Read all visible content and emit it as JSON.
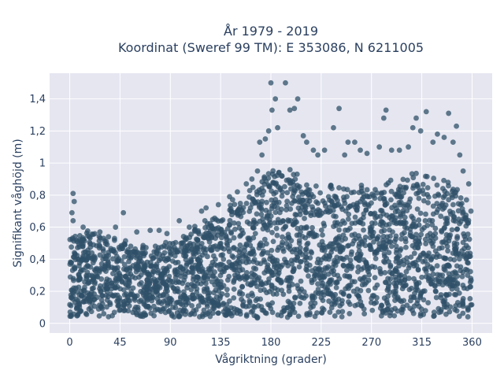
{
  "chart_data": {
    "type": "scatter",
    "title": "År 1979 - 2019",
    "subtitle": "Koordinat (Sweref 99 TM): E 353086, N 6211005",
    "xlabel": "Vågriktning (grader)",
    "ylabel": "Signifikant våghöjd (m)",
    "xlim": [
      -18,
      378
    ],
    "ylim": [
      -0.06,
      1.56
    ],
    "xticks": [
      0,
      45,
      90,
      135,
      180,
      225,
      270,
      315,
      360
    ],
    "xtick_labels": [
      "0",
      "45",
      "90",
      "135",
      "180",
      "225",
      "270",
      "315",
      "360"
    ],
    "yticks": [
      0,
      0.2,
      0.4,
      0.6,
      0.8,
      1.0,
      1.2,
      1.4
    ],
    "ytick_labels": [
      "0",
      "0,2",
      "0,4",
      "0,6",
      "0,8",
      "1",
      "1,2",
      "1,4"
    ],
    "grid": true,
    "legend": "none",
    "point_color": "#2f5068",
    "background_color": "#e5e6f0",
    "y_min_envelope": [
      [
        0,
        0.04
      ],
      [
        45,
        0.04
      ],
      [
        90,
        0.04
      ],
      [
        135,
        0.04
      ],
      [
        165,
        0.02
      ],
      [
        180,
        0.03
      ],
      [
        225,
        0.04
      ],
      [
        270,
        0.04
      ],
      [
        315,
        0.04
      ],
      [
        360,
        0.04
      ]
    ],
    "y_max_envelope": [
      [
        0,
        0.56
      ],
      [
        10,
        0.57
      ],
      [
        20,
        0.56
      ],
      [
        30,
        0.54
      ],
      [
        45,
        0.52
      ],
      [
        60,
        0.49
      ],
      [
        75,
        0.48
      ],
      [
        90,
        0.5
      ],
      [
        105,
        0.56
      ],
      [
        120,
        0.62
      ],
      [
        135,
        0.7
      ],
      [
        150,
        0.78
      ],
      [
        165,
        0.86
      ],
      [
        175,
        0.97
      ],
      [
        180,
        1.0
      ],
      [
        195,
        0.98
      ],
      [
        210,
        0.9
      ],
      [
        225,
        0.88
      ],
      [
        240,
        0.86
      ],
      [
        255,
        0.85
      ],
      [
        270,
        0.87
      ],
      [
        285,
        0.89
      ],
      [
        300,
        0.9
      ],
      [
        315,
        0.92
      ],
      [
        330,
        0.9
      ],
      [
        345,
        0.88
      ],
      [
        360,
        0.6
      ]
    ],
    "outliers": [
      {
        "x": 3,
        "y": 0.81
      },
      {
        "x": 4,
        "y": 0.76
      },
      {
        "x": 2,
        "y": 0.69
      },
      {
        "x": 3,
        "y": 0.64
      },
      {
        "x": 12,
        "y": 0.6
      },
      {
        "x": 27,
        "y": 0.57
      },
      {
        "x": 41,
        "y": 0.6
      },
      {
        "x": 48,
        "y": 0.69
      },
      {
        "x": 60,
        "y": 0.57
      },
      {
        "x": 72,
        "y": 0.58
      },
      {
        "x": 80,
        "y": 0.58
      },
      {
        "x": 87,
        "y": 0.56
      },
      {
        "x": 98,
        "y": 0.64
      },
      {
        "x": 107,
        "y": 0.6
      },
      {
        "x": 118,
        "y": 0.7
      },
      {
        "x": 122,
        "y": 0.72
      },
      {
        "x": 133,
        "y": 0.74
      },
      {
        "x": 143,
        "y": 0.79
      },
      {
        "x": 150,
        "y": 0.82
      },
      {
        "x": 158,
        "y": 0.87
      },
      {
        "x": 163,
        "y": 0.9
      },
      {
        "x": 168,
        "y": 0.95
      },
      {
        "x": 172,
        "y": 1.05
      },
      {
        "x": 170,
        "y": 1.13
      },
      {
        "x": 175,
        "y": 1.15
      },
      {
        "x": 178,
        "y": 1.2
      },
      {
        "x": 181,
        "y": 1.33
      },
      {
        "x": 184,
        "y": 1.4
      },
      {
        "x": 186,
        "y": 1.22
      },
      {
        "x": 180,
        "y": 1.5
      },
      {
        "x": 193,
        "y": 1.5
      },
      {
        "x": 197,
        "y": 1.33
      },
      {
        "x": 201,
        "y": 1.34
      },
      {
        "x": 204,
        "y": 1.4
      },
      {
        "x": 209,
        "y": 1.17
      },
      {
        "x": 212,
        "y": 1.13
      },
      {
        "x": 218,
        "y": 1.08
      },
      {
        "x": 222,
        "y": 1.05
      },
      {
        "x": 228,
        "y": 1.08
      },
      {
        "x": 236,
        "y": 1.22
      },
      {
        "x": 241,
        "y": 1.34
      },
      {
        "x": 246,
        "y": 1.05
      },
      {
        "x": 249,
        "y": 1.13
      },
      {
        "x": 255,
        "y": 1.13
      },
      {
        "x": 260,
        "y": 1.08
      },
      {
        "x": 266,
        "y": 1.06
      },
      {
        "x": 277,
        "y": 1.1
      },
      {
        "x": 281,
        "y": 1.28
      },
      {
        "x": 283,
        "y": 1.33
      },
      {
        "x": 288,
        "y": 1.08
      },
      {
        "x": 295,
        "y": 1.08
      },
      {
        "x": 303,
        "y": 1.1
      },
      {
        "x": 307,
        "y": 1.22
      },
      {
        "x": 310,
        "y": 1.28
      },
      {
        "x": 314,
        "y": 1.2
      },
      {
        "x": 319,
        "y": 1.32
      },
      {
        "x": 325,
        "y": 1.13
      },
      {
        "x": 329,
        "y": 1.18
      },
      {
        "x": 335,
        "y": 1.16
      },
      {
        "x": 339,
        "y": 1.31
      },
      {
        "x": 343,
        "y": 1.13
      },
      {
        "x": 346,
        "y": 1.23
      },
      {
        "x": 349,
        "y": 1.05
      },
      {
        "x": 352,
        "y": 0.95
      },
      {
        "x": 357,
        "y": 0.87
      },
      {
        "x": 355,
        "y": 0.77
      },
      {
        "x": 359,
        "y": 0.7
      }
    ]
  }
}
